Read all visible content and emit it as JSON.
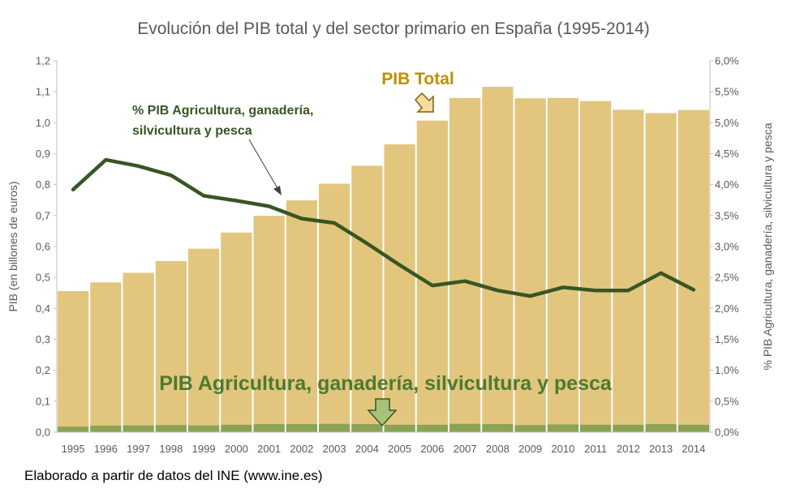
{
  "chart_data": {
    "type": "bar",
    "title": "Evolución del PIB total y del sector primario en España (1995-2014)",
    "ylabel": "PIB (en billones de euros)",
    "y2label": "% PIB Agricultura, ganadería, silvicultura y pesca",
    "ylim": [
      0,
      1.2
    ],
    "y2lim": [
      0,
      6
    ],
    "y_ticks": [
      "0,0",
      "0,1",
      "0,2",
      "0,3",
      "0,4",
      "0,5",
      "0,6",
      "0,7",
      "0,8",
      "0,9",
      "1,0",
      "1,1",
      "1,2"
    ],
    "y2_ticks": [
      "0,0%",
      "0,5%",
      "1,0%",
      "1,5%",
      "2,0%",
      "2,5%",
      "3,0%",
      "3,5%",
      "4,0%",
      "4,5%",
      "5,0%",
      "5,5%",
      "6,0%"
    ],
    "categories": [
      "1995",
      "1996",
      "1997",
      "1998",
      "1999",
      "2000",
      "2001",
      "2002",
      "2003",
      "2004",
      "2005",
      "2006",
      "2007",
      "2008",
      "2009",
      "2010",
      "2011",
      "2012",
      "2013",
      "2014"
    ],
    "series": [
      {
        "name": "PIB Total",
        "type": "bar",
        "axis": "left",
        "color": "#e2c67e",
        "values": [
          0.456,
          0.484,
          0.515,
          0.553,
          0.593,
          0.645,
          0.699,
          0.749,
          0.803,
          0.861,
          0.93,
          1.007,
          1.08,
          1.116,
          1.079,
          1.08,
          1.07,
          1.042,
          1.031,
          1.041
        ]
      },
      {
        "name": "PIB Agricultura, ganadería, silvicultura y pesca",
        "type": "bar",
        "axis": "left",
        "color": "#8ca255",
        "values": [
          0.018,
          0.021,
          0.022,
          0.023,
          0.022,
          0.024,
          0.026,
          0.026,
          0.027,
          0.026,
          0.024,
          0.024,
          0.027,
          0.026,
          0.023,
          0.025,
          0.024,
          0.024,
          0.026,
          0.024
        ]
      },
      {
        "name": "% PIB Agricultura, ganadería, silvicultura y pesca",
        "type": "line",
        "axis": "right",
        "color": "#375623",
        "values": [
          3.92,
          4.4,
          4.3,
          4.15,
          3.82,
          3.74,
          3.65,
          3.45,
          3.38,
          3.05,
          2.7,
          2.37,
          2.44,
          2.29,
          2.2,
          2.34,
          2.29,
          2.29,
          2.57,
          2.3
        ]
      }
    ],
    "annotations": {
      "total": "PIB Total",
      "agri": "PIB Agricultura, ganadería, silvicultura y pesca",
      "pct_line1": "% PIB Agricultura, ganadería,",
      "pct_line2": "silvicultura y pesca"
    },
    "grid": false,
    "legend": "none"
  },
  "footer": "Elaborado a partir de datos del INE (www.ine.es)"
}
